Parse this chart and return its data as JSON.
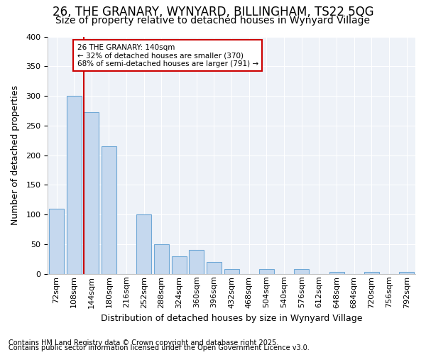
{
  "title1": "26, THE GRANARY, WYNYARD, BILLINGHAM, TS22 5QG",
  "title2": "Size of property relative to detached houses in Wynyard Village",
  "xlabel": "Distribution of detached houses by size in Wynyard Village",
  "ylabel": "Number of detached properties",
  "footer1": "Contains HM Land Registry data © Crown copyright and database right 2025.",
  "footer2": "Contains public sector information licensed under the Open Government Licence v3.0.",
  "categories": [
    "72sqm",
    "108sqm",
    "144sqm",
    "180sqm",
    "216sqm",
    "252sqm",
    "288sqm",
    "324sqm",
    "360sqm",
    "396sqm",
    "432sqm",
    "468sqm",
    "504sqm",
    "540sqm",
    "576sqm",
    "612sqm",
    "648sqm",
    "684sqm",
    "720sqm",
    "756sqm",
    "792sqm"
  ],
  "values": [
    110,
    300,
    273,
    215,
    0,
    100,
    50,
    30,
    40,
    20,
    8,
    0,
    8,
    0,
    8,
    0,
    3,
    0,
    3,
    0,
    3
  ],
  "bar_color": "#c5d8ee",
  "bar_edge_color": "#6fa8d6",
  "bg_color": "#ffffff",
  "plot_bg_color": "#eef2f8",
  "grid_color": "#ffffff",
  "red_line_index": 2,
  "annotation_text": "26 THE GRANARY: 140sqm\n← 32% of detached houses are smaller (370)\n68% of semi-detached houses are larger (791) →",
  "annotation_box_color": "#cc0000",
  "ylim": [
    0,
    400
  ],
  "yticks": [
    0,
    50,
    100,
    150,
    200,
    250,
    300,
    350,
    400
  ],
  "title_fontsize": 12,
  "subtitle_fontsize": 10,
  "axis_fontsize": 9,
  "tick_fontsize": 8,
  "footer_fontsize": 7
}
